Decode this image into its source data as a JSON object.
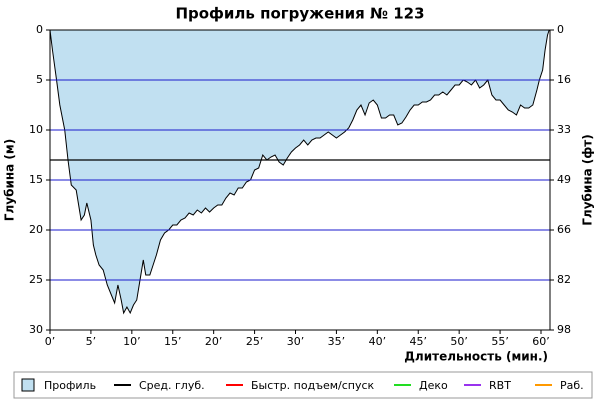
{
  "chart_data": {
    "type": "area",
    "title": "Профиль погружения № 123",
    "ylabel": "Глубина (м)",
    "y2label": "Глубина (фт)",
    "xlabel": "Длительность (мин.)",
    "xlim": [
      0,
      61.1
    ],
    "ylim": [
      0,
      30
    ],
    "y2lim": [
      0,
      98.4
    ],
    "inverted_y": true,
    "grid": true,
    "grid_color": "#1a1acc",
    "xticks": [
      {
        "value": 0,
        "label": "0’"
      },
      {
        "value": 5,
        "label": "5’"
      },
      {
        "value": 10,
        "label": "10’"
      },
      {
        "value": 15,
        "label": "15’"
      },
      {
        "value": 20,
        "label": "20’"
      },
      {
        "value": 25,
        "label": "25’"
      },
      {
        "value": 30,
        "label": "30’"
      },
      {
        "value": 35,
        "label": "35’"
      },
      {
        "value": 40,
        "label": "40’"
      },
      {
        "value": 45,
        "label": "45’"
      },
      {
        "value": 50,
        "label": "50’"
      },
      {
        "value": 55,
        "label": "55’"
      },
      {
        "value": 60,
        "label": "60’"
      }
    ],
    "yticks": [
      0,
      5,
      10,
      15,
      20,
      25,
      30
    ],
    "y2ticks": [
      0,
      {
        "value": 16.4,
        "label": "16"
      },
      {
        "value": 32.8,
        "label": "33"
      },
      {
        "value": 49.2,
        "label": "49"
      },
      {
        "value": 65.6,
        "label": "66"
      },
      82,
      {
        "value": 98.4,
        "label": "98"
      }
    ],
    "x": [
      0,
      0.3,
      0.8,
      1.2,
      1.8,
      2.2,
      2.6,
      3.2,
      3.5,
      3.8,
      4.2,
      4.5,
      5,
      5.3,
      5.6,
      6,
      6.5,
      7,
      7.5,
      7.9,
      8.3,
      8.7,
      9,
      9.4,
      9.8,
      10.2,
      10.6,
      11,
      11.4,
      11.7,
      12.2,
      12.6,
      13,
      13.5,
      14,
      14.5,
      15,
      15.5,
      16,
      16.5,
      17,
      17.5,
      18,
      18.5,
      19,
      19.5,
      20,
      20.5,
      21,
      21.5,
      22,
      22.5,
      23,
      23.5,
      24,
      24.5,
      25,
      25.5,
      26,
      26.5,
      27,
      27.5,
      28,
      28.5,
      29,
      29.5,
      30,
      30.5,
      31,
      31.5,
      32,
      32.5,
      33,
      33.5,
      34,
      34.5,
      35,
      35.5,
      36,
      36.5,
      37,
      37.5,
      38,
      38.5,
      39,
      39.5,
      40,
      40.5,
      41,
      41.5,
      42,
      42.5,
      43,
      43.5,
      44,
      44.5,
      45,
      45.5,
      46,
      46.5,
      47,
      47.5,
      48,
      48.5,
      49,
      49.5,
      50,
      50.5,
      51,
      51.5,
      52,
      52.5,
      53,
      53.5,
      54,
      54.5,
      55,
      55.5,
      56,
      56.5,
      57,
      57.5,
      58,
      58.5,
      59,
      59.5,
      59.8,
      60.2,
      60.5,
      60.8,
      61
    ],
    "series": [
      {
        "name": "Профиль",
        "color": "#c1e0f1",
        "line_color": "#000000",
        "values": [
          0,
          2,
          5,
          7.5,
          10,
          13,
          15.5,
          16,
          17.5,
          19,
          18.5,
          17.3,
          19,
          21.5,
          22.5,
          23.5,
          24,
          25.5,
          26.5,
          27.3,
          25.5,
          27,
          28.3,
          27.7,
          28.3,
          27.5,
          27,
          25,
          23,
          24.5,
          24.5,
          23.5,
          22.5,
          21,
          20.3,
          20,
          19.5,
          19.5,
          19,
          18.8,
          18.3,
          18.5,
          18,
          18.3,
          17.8,
          18.2,
          17.8,
          17.5,
          17.5,
          16.8,
          16.3,
          16.5,
          15.8,
          15.8,
          15.2,
          15,
          14,
          13.8,
          12.5,
          13,
          12.7,
          12.5,
          13.2,
          13.5,
          12.8,
          12.2,
          11.8,
          11.5,
          11,
          11.5,
          11,
          10.8,
          10.8,
          10.5,
          10.2,
          10.5,
          10.8,
          10.5,
          10.2,
          9.8,
          9,
          8,
          7.5,
          8.5,
          7.3,
          7,
          7.5,
          8.8,
          8.8,
          8.5,
          8.5,
          9.5,
          9.3,
          8.7,
          8,
          7.5,
          7.5,
          7.2,
          7.2,
          7,
          6.5,
          6.5,
          6.2,
          6.5,
          6,
          5.5,
          5.5,
          5,
          5.2,
          5.5,
          5,
          5.8,
          5.5,
          5,
          6.5,
          7,
          7,
          7.5,
          8,
          8.2,
          8.5,
          7.5,
          7.8,
          7.8,
          7.5,
          6,
          5,
          4,
          2,
          0.5,
          0
        ]
      }
    ],
    "average_depth": {
      "name": "Сред. глуб.",
      "color": "#000000",
      "value": 13
    },
    "legend_extra": [
      {
        "name": "Быстр. подъем/спуск",
        "color": "#ff0000"
      },
      {
        "name": "Деко",
        "color": "#22dd22"
      },
      {
        "name": "RBT",
        "color": "#9933ee"
      },
      {
        "name": "Раб.",
        "color": "#ff9900"
      }
    ]
  }
}
